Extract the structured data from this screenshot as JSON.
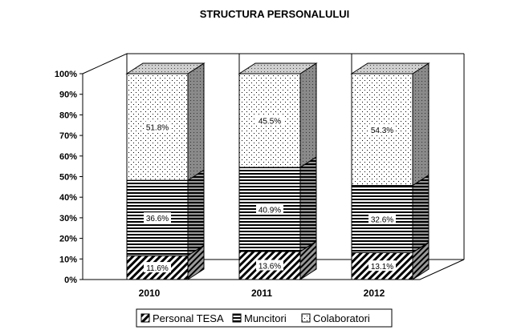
{
  "chart_data": {
    "type": "bar",
    "stacked": true,
    "percent_stacked": true,
    "three_d": true,
    "title": "STRUCTURA PERSONALULUI",
    "categories": [
      "2010",
      "2011",
      "2012"
    ],
    "y_ticks": [
      "0%",
      "10%",
      "20%",
      "30%",
      "40%",
      "50%",
      "60%",
      "70%",
      "80%",
      "90%",
      "100%"
    ],
    "ylim": [
      0,
      100
    ],
    "grid": false,
    "legend_position": "bottom",
    "series": [
      {
        "name": "Personal TESA",
        "pattern": "diagonal-hatch",
        "values": [
          11.6,
          13.6,
          13.1
        ],
        "labels": [
          "11.6%",
          "13.6%",
          "13.1%"
        ]
      },
      {
        "name": "Muncitori",
        "pattern": "horizontal-lines",
        "values": [
          36.6,
          40.9,
          32.6
        ],
        "labels": [
          "36.6%",
          "40.9%",
          "32.6%"
        ]
      },
      {
        "name": "Colaboratori",
        "pattern": "dots",
        "values": [
          51.8,
          45.5,
          54.3
        ],
        "labels": [
          "51.8%",
          "45.5%",
          "54.3%"
        ]
      }
    ]
  }
}
